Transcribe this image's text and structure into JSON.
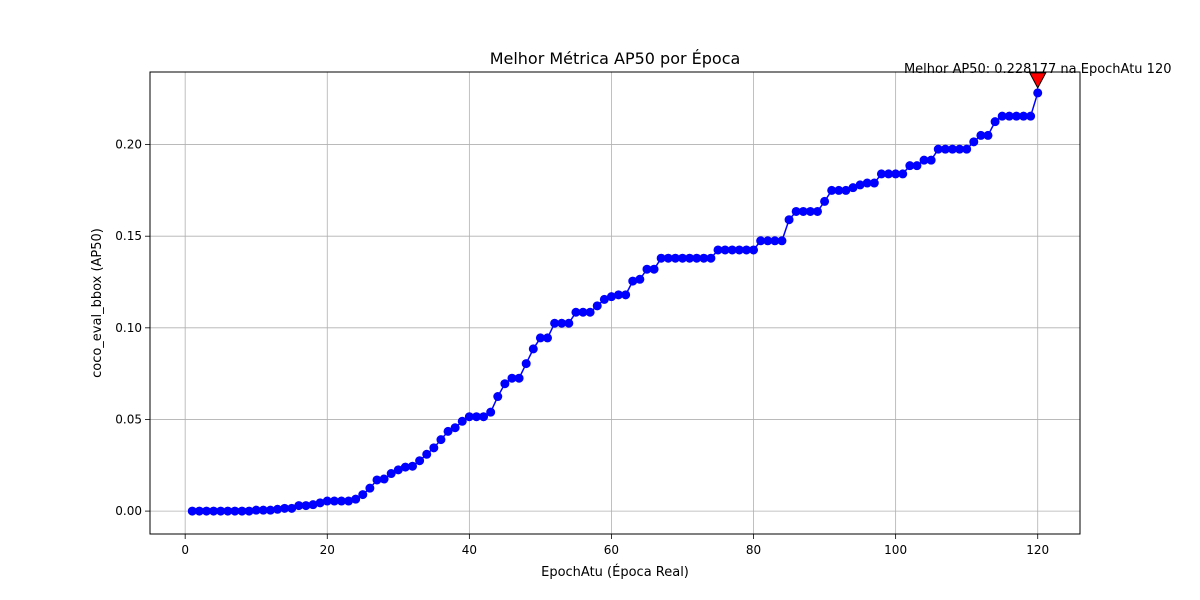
{
  "chart_data": {
    "type": "line",
    "title": "Melhor Métrica AP50 por Época",
    "xlabel": "EpochAtu (Época Real)",
    "ylabel": "coco_eval_bbox (AP50)",
    "xlim": [
      -4.95,
      125.95
    ],
    "ylim": [
      -0.0125,
      0.2396
    ],
    "xticks": [
      0,
      20,
      40,
      60,
      80,
      100,
      120
    ],
    "yticks": [
      0.0,
      0.05,
      0.1,
      0.15,
      0.2
    ],
    "xtick_labels": [
      "0",
      "20",
      "40",
      "60",
      "80",
      "100",
      "120"
    ],
    "ytick_labels": [
      "0.00",
      "0.05",
      "0.10",
      "0.15",
      "0.20"
    ],
    "grid": true,
    "series": [
      {
        "color": "#0000ff",
        "marker": "circle",
        "x": [
          1,
          2,
          3,
          4,
          5,
          6,
          7,
          8,
          9,
          10,
          11,
          12,
          13,
          14,
          15,
          16,
          17,
          18,
          19,
          20,
          21,
          22,
          23,
          24,
          25,
          26,
          27,
          28,
          29,
          30,
          31,
          32,
          33,
          34,
          35,
          36,
          37,
          38,
          39,
          40,
          41,
          42,
          43,
          44,
          45,
          46,
          47,
          48,
          49,
          50,
          51,
          52,
          53,
          54,
          55,
          56,
          57,
          58,
          59,
          60,
          61,
          62,
          63,
          64,
          65,
          66,
          67,
          68,
          69,
          70,
          71,
          72,
          73,
          74,
          75,
          76,
          77,
          78,
          79,
          80,
          81,
          82,
          83,
          84,
          85,
          86,
          87,
          88,
          89,
          90,
          91,
          92,
          93,
          94,
          95,
          96,
          97,
          98,
          99,
          100,
          101,
          102,
          103,
          104,
          105,
          106,
          107,
          108,
          109,
          110,
          111,
          112,
          113,
          114,
          115,
          116,
          117,
          118,
          119,
          120
        ],
        "y": [
          0.0,
          0.0,
          0.0,
          0.0,
          0.0,
          0.0,
          0.0,
          0.0,
          0.0,
          0.0005,
          0.0005,
          0.0005,
          0.001,
          0.0015,
          0.0015,
          0.003,
          0.003,
          0.0035,
          0.0045,
          0.0055,
          0.0055,
          0.0055,
          0.0055,
          0.0065,
          0.009,
          0.0125,
          0.017,
          0.0175,
          0.0205,
          0.0225,
          0.024,
          0.0245,
          0.0275,
          0.031,
          0.0345,
          0.039,
          0.0435,
          0.0455,
          0.049,
          0.0515,
          0.0515,
          0.0515,
          0.054,
          0.0625,
          0.0695,
          0.0725,
          0.0725,
          0.0805,
          0.0885,
          0.0945,
          0.0945,
          0.1025,
          0.1025,
          0.1025,
          0.1085,
          0.1085,
          0.1085,
          0.112,
          0.1155,
          0.117,
          0.118,
          0.118,
          0.1255,
          0.1265,
          0.132,
          0.132,
          0.138,
          0.138,
          0.138,
          0.138,
          0.138,
          0.138,
          0.138,
          0.138,
          0.1425,
          0.1425,
          0.1425,
          0.1425,
          0.1425,
          0.1425,
          0.1475,
          0.1475,
          0.1475,
          0.1475,
          0.159,
          0.1635,
          0.1635,
          0.1635,
          0.1635,
          0.169,
          0.175,
          0.175,
          0.175,
          0.1765,
          0.178,
          0.179,
          0.179,
          0.184,
          0.184,
          0.184,
          0.184,
          0.1885,
          0.1885,
          0.1915,
          0.1915,
          0.1975,
          0.1975,
          0.1975,
          0.1975,
          0.1975,
          0.2015,
          0.205,
          0.205,
          0.2125,
          0.2155,
          0.2155,
          0.2155,
          0.2155,
          0.2155,
          0.228177
        ]
      }
    ],
    "annotation": {
      "text": "Melhor AP50: 0.228177 na EpochAtu 120",
      "x": 120,
      "y": 0.228177,
      "marker": "triangle-down",
      "marker_color": "#ff0000"
    }
  }
}
